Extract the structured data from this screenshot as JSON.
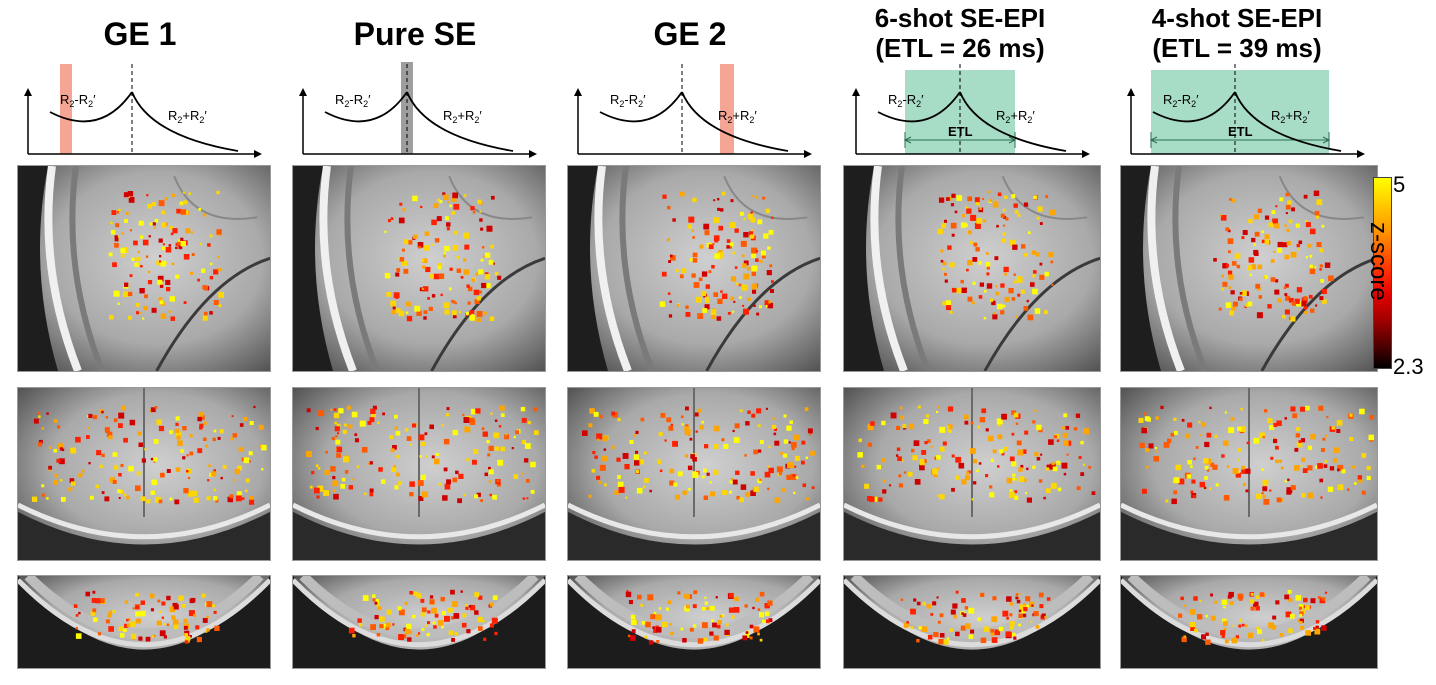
{
  "columns": [
    {
      "title": "GE 1",
      "highlight": {
        "kind": "pre",
        "color": "#f4a594"
      }
    },
    {
      "title": "Pure SE",
      "highlight": {
        "kind": "echo",
        "color": "#9e9e9e"
      }
    },
    {
      "title": "GE 2",
      "highlight": {
        "kind": "post",
        "color": "#f4a594"
      }
    },
    {
      "title_line1": "6-shot SE-EPI",
      "title_line2": "(ETL = 26 ms)",
      "highlight": {
        "kind": "etl",
        "color": "#a7dcc6"
      },
      "etl_label": "ETL"
    },
    {
      "title_line1": "4-shot SE-EPI",
      "title_line2": "(ETL = 39 ms)",
      "highlight": {
        "kind": "etl",
        "color": "#a7dcc6"
      },
      "etl_label": "ETL"
    }
  ],
  "diagram_labels": {
    "left": "R2-R2'",
    "right": "R2+R2'"
  },
  "colorbar": {
    "max": "5",
    "min": "2.3",
    "label": "z-score"
  },
  "rows": [
    "axial-zoom",
    "coronal",
    "axial-wide"
  ]
}
